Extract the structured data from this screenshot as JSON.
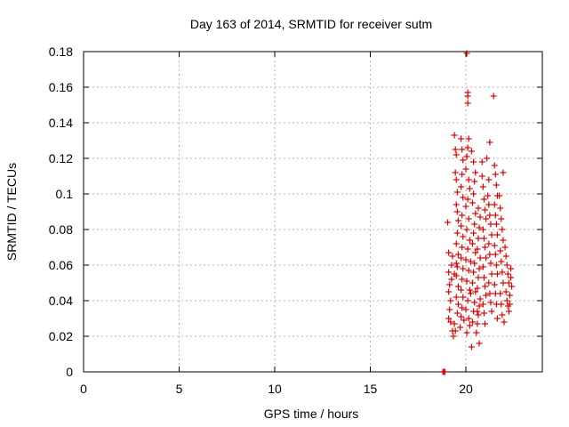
{
  "chart_data": {
    "type": "scatter",
    "title": "Day 163 of 2014, SRMTID for receiver sutm",
    "xlabel": "GPS time / hours",
    "ylabel": "SRMTID / TECUs",
    "xlim": [
      0,
      24
    ],
    "ylim": [
      0,
      0.18
    ],
    "xticks": [
      0,
      5,
      10,
      15,
      20
    ],
    "yticks": [
      0,
      0.02,
      0.04,
      0.06,
      0.08,
      0.1,
      0.12,
      0.14,
      0.16,
      0.18
    ],
    "xtick_labels": [
      "0",
      "5",
      "10",
      "15",
      "20"
    ],
    "ytick_labels": [
      "0",
      "0.02",
      "0.04",
      "0.06",
      "0.08",
      "0.1",
      "0.12",
      "0.14",
      "0.16",
      "0.18"
    ],
    "grid": true,
    "marker": "+",
    "color": "#dd0000",
    "series": [
      {
        "name": "SRMTID",
        "points": [
          [
            18.8,
            0.0
          ],
          [
            18.85,
            0.0
          ],
          [
            18.9,
            0.0
          ],
          [
            19.05,
            0.084
          ],
          [
            19.1,
            0.067
          ],
          [
            19.1,
            0.056
          ],
          [
            19.15,
            0.049
          ],
          [
            19.1,
            0.045
          ],
          [
            19.2,
            0.04
          ],
          [
            19.15,
            0.035
          ],
          [
            19.1,
            0.03
          ],
          [
            19.2,
            0.028
          ],
          [
            19.3,
            0.023
          ],
          [
            19.35,
            0.02
          ],
          [
            19.25,
            0.06
          ],
          [
            19.3,
            0.065
          ],
          [
            19.25,
            0.052
          ],
          [
            19.4,
            0.133
          ],
          [
            19.45,
            0.125
          ],
          [
            19.5,
            0.122
          ],
          [
            19.45,
            0.112
          ],
          [
            19.5,
            0.108
          ],
          [
            19.55,
            0.101
          ],
          [
            19.5,
            0.094
          ],
          [
            19.55,
            0.09
          ],
          [
            19.6,
            0.085
          ],
          [
            19.55,
            0.078
          ],
          [
            19.5,
            0.072
          ],
          [
            19.6,
            0.066
          ],
          [
            19.55,
            0.059
          ],
          [
            19.5,
            0.054
          ],
          [
            19.6,
            0.048
          ],
          [
            19.5,
            0.042
          ],
          [
            19.6,
            0.038
          ],
          [
            19.55,
            0.033
          ],
          [
            19.4,
            0.027
          ],
          [
            19.45,
            0.023
          ],
          [
            19.5,
            0.061
          ],
          [
            19.4,
            0.055
          ],
          [
            19.75,
            0.131
          ],
          [
            19.8,
            0.125
          ],
          [
            19.85,
            0.119
          ],
          [
            19.8,
            0.111
          ],
          [
            19.75,
            0.104
          ],
          [
            19.85,
            0.098
          ],
          [
            19.8,
            0.088
          ],
          [
            19.75,
            0.082
          ],
          [
            19.85,
            0.076
          ],
          [
            19.8,
            0.07
          ],
          [
            19.75,
            0.064
          ],
          [
            19.85,
            0.058
          ],
          [
            19.8,
            0.052
          ],
          [
            19.75,
            0.046
          ],
          [
            19.85,
            0.042
          ],
          [
            19.8,
            0.036
          ],
          [
            19.75,
            0.031
          ],
          [
            19.7,
            0.025
          ],
          [
            19.9,
            0.029
          ],
          [
            20.05,
            0.179
          ],
          [
            20.1,
            0.157
          ],
          [
            20.1,
            0.155
          ],
          [
            20.1,
            0.151
          ],
          [
            20.15,
            0.131
          ],
          [
            20.1,
            0.126
          ],
          [
            20.05,
            0.121
          ],
          [
            20.0,
            0.114
          ],
          [
            20.15,
            0.108
          ],
          [
            20.2,
            0.103
          ],
          [
            20.1,
            0.097
          ],
          [
            20.0,
            0.093
          ],
          [
            20.15,
            0.086
          ],
          [
            20.05,
            0.08
          ],
          [
            20.2,
            0.074
          ],
          [
            20.1,
            0.069
          ],
          [
            20.0,
            0.063
          ],
          [
            20.15,
            0.057
          ],
          [
            20.05,
            0.051
          ],
          [
            20.2,
            0.046
          ],
          [
            20.1,
            0.04
          ],
          [
            20.0,
            0.035
          ],
          [
            20.15,
            0.03
          ],
          [
            20.2,
            0.026
          ],
          [
            20.05,
            0.022
          ],
          [
            20.25,
            0.044
          ],
          [
            20.25,
            0.062
          ],
          [
            20.3,
            0.014
          ],
          [
            20.35,
            0.028
          ],
          [
            20.4,
            0.034
          ],
          [
            20.45,
            0.039
          ],
          [
            20.5,
            0.045
          ],
          [
            20.35,
            0.05
          ],
          [
            20.4,
            0.056
          ],
          [
            20.45,
            0.061
          ],
          [
            20.5,
            0.067
          ],
          [
            20.35,
            0.072
          ],
          [
            20.4,
            0.078
          ],
          [
            20.45,
            0.083
          ],
          [
            20.5,
            0.089
          ],
          [
            20.35,
            0.095
          ],
          [
            20.4,
            0.1
          ],
          [
            20.45,
            0.107
          ],
          [
            20.5,
            0.112
          ],
          [
            20.4,
            0.118
          ],
          [
            20.3,
            0.124
          ],
          [
            20.55,
            0.022
          ],
          [
            20.6,
            0.027
          ],
          [
            20.65,
            0.032
          ],
          [
            20.7,
            0.037
          ],
          [
            20.75,
            0.041
          ],
          [
            20.6,
            0.047
          ],
          [
            20.65,
            0.053
          ],
          [
            20.7,
            0.058
          ],
          [
            20.75,
            0.064
          ],
          [
            20.6,
            0.069
          ],
          [
            20.65,
            0.075
          ],
          [
            20.7,
            0.081
          ],
          [
            20.75,
            0.087
          ],
          [
            20.65,
            0.092
          ],
          [
            20.7,
            0.016
          ],
          [
            20.6,
            0.034
          ],
          [
            20.85,
            0.11
          ],
          [
            20.9,
            0.104
          ],
          [
            20.95,
            0.097
          ],
          [
            21.0,
            0.091
          ],
          [
            21.05,
            0.086
          ],
          [
            20.9,
            0.08
          ],
          [
            20.95,
            0.075
          ],
          [
            21.0,
            0.07
          ],
          [
            21.05,
            0.064
          ],
          [
            20.9,
            0.059
          ],
          [
            20.95,
            0.053
          ],
          [
            21.0,
            0.048
          ],
          [
            21.05,
            0.043
          ],
          [
            20.9,
            0.038
          ],
          [
            20.95,
            0.033
          ],
          [
            21.0,
            0.027
          ],
          [
            20.85,
            0.118
          ],
          [
            21.1,
            0.12
          ],
          [
            21.15,
            0.099
          ],
          [
            21.2,
            0.094
          ],
          [
            21.25,
            0.088
          ],
          [
            21.3,
            0.083
          ],
          [
            21.35,
            0.077
          ],
          [
            21.2,
            0.072
          ],
          [
            21.25,
            0.066
          ],
          [
            21.3,
            0.061
          ],
          [
            21.35,
            0.055
          ],
          [
            21.2,
            0.05
          ],
          [
            21.25,
            0.044
          ],
          [
            21.3,
            0.039
          ],
          [
            21.35,
            0.034
          ],
          [
            21.25,
            0.129
          ],
          [
            21.2,
            0.108
          ],
          [
            21.45,
            0.155
          ],
          [
            21.5,
            0.116
          ],
          [
            21.55,
            0.111
          ],
          [
            21.6,
            0.105
          ],
          [
            21.65,
            0.099
          ],
          [
            21.5,
            0.094
          ],
          [
            21.55,
            0.088
          ],
          [
            21.6,
            0.083
          ],
          [
            21.65,
            0.077
          ],
          [
            21.5,
            0.071
          ],
          [
            21.55,
            0.066
          ],
          [
            21.6,
            0.06
          ],
          [
            21.65,
            0.055
          ],
          [
            21.5,
            0.049
          ],
          [
            21.55,
            0.044
          ],
          [
            21.6,
            0.038
          ],
          [
            21.65,
            0.03
          ],
          [
            21.75,
            0.099
          ],
          [
            21.8,
            0.092
          ],
          [
            21.85,
            0.086
          ],
          [
            21.9,
            0.08
          ],
          [
            21.95,
            0.074
          ],
          [
            21.8,
            0.068
          ],
          [
            21.85,
            0.062
          ],
          [
            21.9,
            0.056
          ],
          [
            21.95,
            0.05
          ],
          [
            21.8,
            0.044
          ],
          [
            21.85,
            0.038
          ],
          [
            21.9,
            0.032
          ],
          [
            22.0,
            0.028
          ],
          [
            21.95,
            0.112
          ],
          [
            22.05,
            0.07
          ],
          [
            22.1,
            0.065
          ],
          [
            22.15,
            0.06
          ],
          [
            22.2,
            0.055
          ],
          [
            22.25,
            0.05
          ],
          [
            22.1,
            0.045
          ],
          [
            22.15,
            0.04
          ],
          [
            22.2,
            0.037
          ],
          [
            22.25,
            0.034
          ],
          [
            22.3,
            0.043
          ],
          [
            22.35,
            0.053
          ],
          [
            22.4,
            0.048
          ],
          [
            22.35,
            0.058
          ],
          [
            22.3,
            0.038
          ]
        ]
      }
    ]
  }
}
